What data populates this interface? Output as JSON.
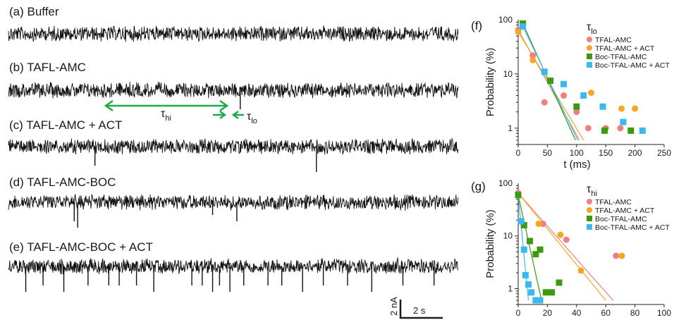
{
  "traces": [
    {
      "label": "(a) Buffer",
      "events": []
    },
    {
      "label": "(b) TAFL-AMC",
      "events": [
        {
          "t": 6.7,
          "depth": 0.45
        }
      ]
    },
    {
      "label": "(c) TAFL-AMC + ACT",
      "events": [
        {
          "t": 2.5,
          "depth": 0.45
        },
        {
          "t": 8.9,
          "depth": 0.6
        }
      ]
    },
    {
      "label": "(d) TAFL-AMC-BOC",
      "events": [
        {
          "t": 1.9,
          "depth": 0.45
        },
        {
          "t": 2.0,
          "depth": 0.6
        },
        {
          "t": 5.9,
          "depth": 0.3
        },
        {
          "t": 6.6,
          "depth": 0.45
        }
      ]
    },
    {
      "label": "(e) TAFL-AMC-BOC + ACT",
      "events": [
        {
          "t": 0.5,
          "depth": 0.6
        },
        {
          "t": 1.0,
          "depth": 0.45
        },
        {
          "t": 1.6,
          "depth": 0.6
        },
        {
          "t": 2.3,
          "depth": 0.45
        },
        {
          "t": 2.9,
          "depth": 0.45
        },
        {
          "t": 3.2,
          "depth": 0.45
        },
        {
          "t": 3.7,
          "depth": 0.45
        },
        {
          "t": 4.2,
          "depth": 0.6
        },
        {
          "t": 5.3,
          "depth": 0.45
        },
        {
          "t": 5.6,
          "depth": 0.45
        },
        {
          "t": 5.9,
          "depth": 0.6
        },
        {
          "t": 6.1,
          "depth": 0.45
        },
        {
          "t": 6.4,
          "depth": 0.6
        },
        {
          "t": 6.8,
          "depth": 0.45
        },
        {
          "t": 7.5,
          "depth": 0.45
        },
        {
          "t": 7.9,
          "depth": 0.45
        },
        {
          "t": 8.5,
          "depth": 0.6
        },
        {
          "t": 9.1,
          "depth": 0.45
        },
        {
          "t": 9.8,
          "depth": 0.45
        },
        {
          "t": 10.5,
          "depth": 0.6
        },
        {
          "t": 11.4,
          "depth": 0.45
        },
        {
          "t": 12.3,
          "depth": 0.45
        }
      ]
    }
  ],
  "annotations": {
    "tau_hi": "τ",
    "tau_hi_sub": "hi",
    "tau_lo": "τ",
    "tau_lo_sub": "lo"
  },
  "scale_bar": {
    "current": "2 nA",
    "time": "2 s"
  },
  "chart_data": [
    {
      "panel": "(f)",
      "type": "scatter",
      "xlabel": "t (ms)",
      "ylabel": "Probability (%)",
      "xlim": [
        0,
        250
      ],
      "ylim": [
        0.5,
        100
      ],
      "yscale": "log",
      "xticks": [
        "0",
        "50",
        "100",
        "150",
        "200",
        "250"
      ],
      "yticks": [
        "1",
        "10",
        "100"
      ],
      "legend_title": "τ",
      "legend_title_sub": "lo",
      "legend_position": "top-right",
      "series": [
        {
          "name": "TFAL-AMC",
          "color": "#f08080",
          "marker": "circle",
          "x": [
            0,
            25,
            45,
            78,
            100,
            120,
            150,
            175
          ],
          "y": [
            65,
            22,
            3,
            4,
            2,
            1,
            1,
            1
          ],
          "fit": [
            [
              0,
              65
            ],
            [
              105,
              0.6
            ]
          ]
        },
        {
          "name": "TFAL-AMC + ACT",
          "color": "#f5a623",
          "marker": "circle",
          "x": [
            0,
            25,
            125,
            177,
            200
          ],
          "y": [
            60,
            18,
            4.5,
            2.3,
            2.3
          ],
          "fit": [
            [
              0,
              60
            ],
            [
              112,
              0.6
            ]
          ]
        },
        {
          "name": "Boc-TFAL-AMC",
          "color": "#3a9b10",
          "marker": "square",
          "x": [
            8,
            55,
            100,
            148,
            193
          ],
          "y": [
            85,
            7.5,
            2.5,
            0.9,
            0.9
          ],
          "fit": [
            [
              8,
              85
            ],
            [
              98,
              0.6
            ]
          ]
        },
        {
          "name": "Boc-TFAL-AMC + ACT",
          "color": "#3bb8f0",
          "marker": "square",
          "x": [
            8,
            45,
            78,
            112,
            145,
            180,
            213
          ],
          "y": [
            75,
            11,
            6.5,
            4,
            2.5,
            1.3,
            0.9
          ],
          "fit": [
            [
              8,
              75
            ],
            [
              102,
              0.6
            ]
          ]
        }
      ]
    },
    {
      "panel": "(g)",
      "type": "scatter",
      "xlabel": "t (s)",
      "ylabel": "Probability (%)",
      "xlim": [
        0,
        100
      ],
      "ylim": [
        0.5,
        100
      ],
      "yscale": "log",
      "xticks": [
        "0",
        "20",
        "40",
        "60",
        "80",
        "100"
      ],
      "yticks": [
        "1",
        "10",
        "100"
      ],
      "legend_title": "τ",
      "legend_title_sub": "hi",
      "legend_position": "top-right",
      "series": [
        {
          "name": "TFAL-AMC",
          "color": "#f08080",
          "marker": "circle",
          "x": [
            0,
            17,
            33,
            67
          ],
          "y": [
            65,
            17,
            8.5,
            4.2
          ],
          "fit": [
            [
              0,
              65
            ],
            [
              65,
              0.6
            ]
          ]
        },
        {
          "name": "TFAL-AMC + ACT",
          "color": "#f5a623",
          "marker": "circle",
          "x": [
            14,
            29,
            43,
            71
          ],
          "y": [
            17,
            10.5,
            2.2,
            4.2
          ],
          "fit": [
            [
              0,
              65
            ],
            [
              60,
              0.6
            ]
          ]
        },
        {
          "name": "Boc-TFAL-AMC",
          "color": "#3a9b10",
          "marker": "square",
          "x": [
            0,
            4,
            8,
            12,
            15,
            19,
            23,
            28
          ],
          "y": [
            60,
            16,
            8,
            4.5,
            5.5,
            0.85,
            0.85,
            1.3
          ],
          "fit": [
            [
              0,
              60
            ],
            [
              16,
              0.6
            ]
          ]
        },
        {
          "name": "Boc-TFAL-AMC + ACT",
          "color": "#3bb8f0",
          "marker": "square",
          "x": [
            2,
            4,
            5,
            7,
            9,
            12,
            15
          ],
          "y": [
            19,
            5.5,
            1.8,
            1.2,
            0.85,
            0.6,
            0.6
          ],
          "fit": [
            [
              0,
              60
            ],
            [
              7,
              0.6
            ]
          ]
        }
      ]
    }
  ]
}
